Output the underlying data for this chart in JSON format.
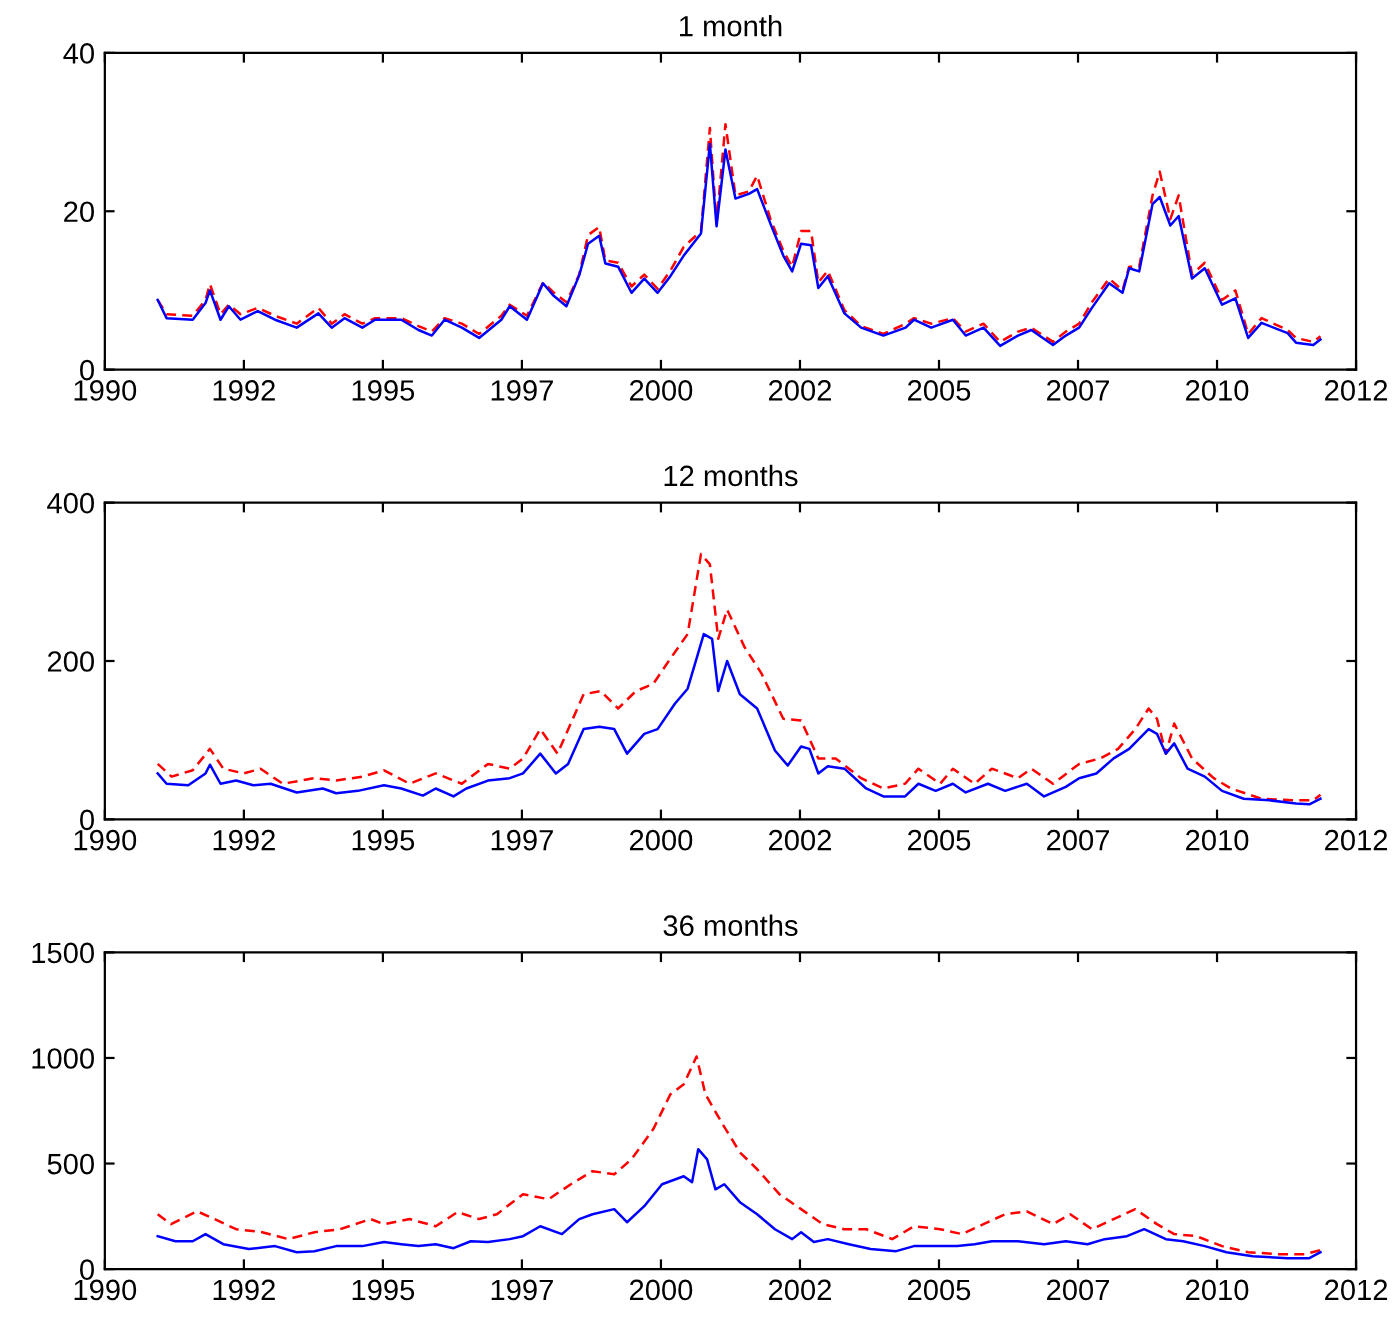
{
  "chart_data": [
    {
      "type": "line",
      "title": "1 month",
      "xlim": [
        1990,
        2012.5
      ],
      "ylim": [
        0,
        40
      ],
      "yticks": [
        0,
        20,
        40
      ],
      "grid": false,
      "xticks": [
        {
          "value": 1990,
          "label": "1990"
        },
        {
          "value": 1992.5,
          "label": "1992"
        },
        {
          "value": 1995,
          "label": "1995"
        },
        {
          "value": 1997.5,
          "label": "1997"
        },
        {
          "value": 2000,
          "label": "2000"
        },
        {
          "value": 2002.5,
          "label": "2002"
        },
        {
          "value": 2005,
          "label": "2005"
        },
        {
          "value": 2007.5,
          "label": "2007"
        },
        {
          "value": 2010,
          "label": "2010"
        },
        {
          "value": 2012.5,
          "label": "2012"
        }
      ],
      "series": [
        {
          "color": "#ff0000",
          "line_style": "dashed",
          "x": [
            1990.95,
            1991.11,
            1991.58,
            1991.81,
            1991.89,
            1992.08,
            1992.23,
            1992.44,
            1992.75,
            1993.06,
            1993.45,
            1993.84,
            1994.08,
            1994.31,
            1994.63,
            1994.86,
            1995.33,
            1995.64,
            1995.88,
            1996.11,
            1996.42,
            1996.73,
            1997.13,
            1997.28,
            1997.59,
            1997.88,
            1998.06,
            1998.3,
            1998.53,
            1998.69,
            1998.89,
            1999.0,
            1999.23,
            1999.47,
            1999.7,
            1999.94,
            2000.17,
            2000.41,
            2000.72,
            2000.88,
            2001.0,
            2001.16,
            2001.34,
            2001.58,
            2001.73,
            2001.97,
            2002.2,
            2002.36,
            2002.52,
            2002.7,
            2002.83,
            2003.0,
            2003.3,
            2003.6,
            2004.0,
            2004.4,
            2004.55,
            2004.86,
            2005.25,
            2005.48,
            2005.8,
            2006.1,
            2006.42,
            2006.66,
            2007.05,
            2007.28,
            2007.52,
            2007.75,
            2008.06,
            2008.3,
            2008.42,
            2008.6,
            2008.84,
            2008.97,
            2009.16,
            2009.31,
            2009.55,
            2009.78,
            2010.09,
            2010.33,
            2010.56,
            2010.8,
            2011.27,
            2011.42,
            2011.73,
            2011.86
          ],
          "values": [
            8.8,
            7,
            6.8,
            8.8,
            10.8,
            7,
            8.2,
            7,
            7.8,
            6.8,
            5.8,
            7.8,
            5.8,
            7,
            5.8,
            6.5,
            6.5,
            5.5,
            4.8,
            6.5,
            5.8,
            4.5,
            6.8,
            8.2,
            6.8,
            11,
            9.8,
            8.5,
            12,
            17,
            18,
            13.8,
            13.5,
            10.5,
            12,
            10.2,
            12.5,
            15.5,
            17.5,
            30.5,
            18.5,
            31,
            22,
            22.5,
            24.5,
            19,
            15,
            13,
            17.5,
            17.5,
            11,
            12.5,
            7.5,
            5.5,
            4.5,
            5.8,
            6.5,
            5.8,
            6.5,
            4.8,
            5.8,
            3.5,
            4.8,
            5.3,
            3.5,
            4.8,
            5.8,
            8.5,
            11.5,
            10,
            13,
            13,
            22,
            25,
            19,
            22,
            12,
            13.5,
            8.8,
            10,
            4.5,
            6.5,
            5,
            4,
            3.5,
            4.2
          ]
        },
        {
          "color": "#0000ff",
          "line_style": "solid",
          "x": [
            1990.95,
            1991.11,
            1991.58,
            1991.81,
            1991.89,
            1992.08,
            1992.23,
            1992.44,
            1992.75,
            1993.06,
            1993.45,
            1993.84,
            1994.08,
            1994.31,
            1994.63,
            1994.86,
            1995.33,
            1995.64,
            1995.88,
            1996.11,
            1996.42,
            1996.73,
            1997.13,
            1997.28,
            1997.59,
            1997.88,
            1998.06,
            1998.3,
            1998.53,
            1998.69,
            1998.89,
            1999.0,
            1999.23,
            1999.47,
            1999.7,
            1999.94,
            2000.17,
            2000.41,
            2000.72,
            2000.88,
            2001.0,
            2001.16,
            2001.34,
            2001.58,
            2001.73,
            2001.97,
            2002.2,
            2002.36,
            2002.52,
            2002.7,
            2002.83,
            2003.0,
            2003.3,
            2003.6,
            2004.0,
            2004.4,
            2004.55,
            2004.86,
            2005.25,
            2005.48,
            2005.8,
            2006.1,
            2006.42,
            2006.66,
            2007.05,
            2007.28,
            2007.52,
            2007.75,
            2008.06,
            2008.3,
            2008.42,
            2008.6,
            2008.84,
            2008.97,
            2009.16,
            2009.31,
            2009.55,
            2009.78,
            2010.09,
            2010.33,
            2010.56,
            2010.8,
            2011.27,
            2011.42,
            2011.73,
            2011.86
          ],
          "values": [
            8.8,
            6.5,
            6.3,
            8.4,
            10,
            6.3,
            8,
            6.3,
            7.4,
            6.3,
            5.3,
            7.1,
            5.3,
            6.5,
            5.3,
            6.3,
            6.3,
            5,
            4.3,
            6.3,
            5.3,
            4,
            6.3,
            8,
            6.3,
            10.9,
            9.4,
            8,
            11.9,
            15.9,
            16.9,
            13.4,
            13,
            9.7,
            11.5,
            9.7,
            11.8,
            14.4,
            17.2,
            28.5,
            18.1,
            27.8,
            21.6,
            22.2,
            22.8,
            18.4,
            14.4,
            12.4,
            15.9,
            15.7,
            10.3,
            11.8,
            7.1,
            5.3,
            4.3,
            5.3,
            6.3,
            5.3,
            6.3,
            4.3,
            5.3,
            3,
            4.3,
            5,
            3.1,
            4.3,
            5.3,
            7.8,
            10.9,
            9.7,
            12.8,
            12.4,
            20.9,
            21.8,
            18.2,
            19.4,
            11.5,
            12.8,
            8.2,
            9,
            4,
            5.9,
            4.6,
            3.4,
            3.1,
            3.8
          ]
        }
      ]
    },
    {
      "type": "line",
      "title": "12 months",
      "xlim": [
        1990,
        2012.5
      ],
      "ylim": [
        0,
        400
      ],
      "yticks": [
        0,
        200,
        400
      ],
      "grid": false,
      "xticks": [
        {
          "value": 1990,
          "label": "1990"
        },
        {
          "value": 1992.5,
          "label": "1992"
        },
        {
          "value": 1995,
          "label": "1995"
        },
        {
          "value": 1997.5,
          "label": "1997"
        },
        {
          "value": 2000,
          "label": "2000"
        },
        {
          "value": 2002.5,
          "label": "2002"
        },
        {
          "value": 2005,
          "label": "2005"
        },
        {
          "value": 2007.5,
          "label": "2007"
        },
        {
          "value": 2010,
          "label": "2010"
        },
        {
          "value": 2012.5,
          "label": "2012"
        }
      ],
      "series": [
        {
          "color": "#ff0000",
          "line_style": "dashed",
          "x": [
            1990.95,
            1991.2,
            1991.58,
            1991.89,
            1992.13,
            1992.5,
            1992.8,
            1993.2,
            1993.77,
            1994.16,
            1994.63,
            1995.02,
            1995.48,
            1995.95,
            1996.42,
            1996.89,
            1997.28,
            1997.52,
            1997.83,
            1998.14,
            1998.61,
            1998.92,
            1999.23,
            1999.55,
            1999.86,
            2000.17,
            2000.48,
            2000.72,
            2000.88,
            2001.03,
            2001.19,
            2001.5,
            2001.81,
            2002.2,
            2002.52,
            2002.83,
            2003.14,
            2003.6,
            2004.0,
            2004.39,
            2004.63,
            2005.02,
            2005.25,
            2005.64,
            2005.95,
            2006.42,
            2006.66,
            2007.05,
            2007.52,
            2007.9,
            2008.22,
            2008.53,
            2008.77,
            2008.92,
            2009.08,
            2009.23,
            2009.55,
            2009.94,
            2010.25,
            2010.8,
            2011.42,
            2011.73,
            2011.86
          ],
          "values": [
            70,
            54,
            62,
            89,
            64,
            58,
            64,
            45,
            52,
            49,
            54,
            62,
            45,
            58,
            45,
            70,
            64,
            77,
            114,
            83,
            158,
            162,
            140,
            162,
            171,
            203,
            234,
            335,
            322,
            228,
            265,
            218,
            184,
            127,
            125,
            77,
            77,
            52,
            39,
            45,
            64,
            45,
            64,
            45,
            64,
            52,
            64,
            45,
            70,
            77,
            89,
            114,
            140,
            127,
            83,
            121,
            77,
            52,
            39,
            26,
            24,
            24,
            31
          ]
        },
        {
          "color": "#0000ff",
          "line_style": "solid",
          "x": [
            1990.95,
            1991.11,
            1991.5,
            1991.81,
            1991.89,
            1992.08,
            1992.36,
            1992.67,
            1992.98,
            1993.45,
            1993.92,
            1994.16,
            1994.55,
            1995.02,
            1995.33,
            1995.72,
            1995.95,
            1996.27,
            1996.5,
            1996.89,
            1997.28,
            1997.52,
            1997.83,
            1998.11,
            1998.33,
            1998.61,
            1998.89,
            1999.16,
            1999.39,
            1999.7,
            1999.94,
            2000.25,
            2000.48,
            2000.64,
            2000.77,
            2000.92,
            2001.03,
            2001.19,
            2001.42,
            2001.73,
            2002.05,
            2002.28,
            2002.52,
            2002.67,
            2002.83,
            2003.0,
            2003.3,
            2003.69,
            2004.0,
            2004.39,
            2004.63,
            2004.94,
            2005.25,
            2005.48,
            2005.88,
            2006.19,
            2006.58,
            2006.89,
            2007.28,
            2007.52,
            2007.83,
            2008.14,
            2008.42,
            2008.77,
            2008.92,
            2009.08,
            2009.23,
            2009.47,
            2009.78,
            2010.09,
            2010.48,
            2010.95,
            2011.42,
            2011.66,
            2011.86
          ],
          "values": [
            58,
            45,
            43,
            58,
            69,
            45,
            49,
            43,
            45,
            34,
            39,
            33,
            36,
            43,
            39,
            30,
            39,
            29,
            39,
            49,
            52,
            58,
            83,
            58,
            70,
            114,
            117,
            114,
            83,
            108,
            114,
            146,
            165,
            203,
            234,
            228,
            162,
            200,
            158,
            140,
            87,
            68,
            92,
            89,
            58,
            67,
            64,
            39,
            29,
            29,
            45,
            36,
            45,
            34,
            45,
            36,
            45,
            29,
            41,
            52,
            58,
            77,
            89,
            114,
            108,
            83,
            96,
            64,
            54,
            36,
            26,
            24,
            20,
            19,
            26
          ]
        }
      ]
    },
    {
      "type": "line",
      "title": "36 months",
      "xlim": [
        1990,
        2012.5
      ],
      "ylim": [
        0,
        1500
      ],
      "yticks": [
        0,
        500,
        1000,
        1500
      ],
      "grid": false,
      "xticks": [
        {
          "value": 1990,
          "label": "1990"
        },
        {
          "value": 1992.5,
          "label": "1992"
        },
        {
          "value": 1995,
          "label": "1995"
        },
        {
          "value": 1997.5,
          "label": "1997"
        },
        {
          "value": 2000,
          "label": "2000"
        },
        {
          "value": 2002.5,
          "label": "2002"
        },
        {
          "value": 2005,
          "label": "2005"
        },
        {
          "value": 2007.5,
          "label": "2007"
        },
        {
          "value": 2010,
          "label": "2010"
        },
        {
          "value": 2012.5,
          "label": "2012"
        }
      ],
      "series": [
        {
          "color": "#ff0000",
          "line_style": "dashed",
          "x": [
            1990.95,
            1991.19,
            1991.66,
            1991.97,
            1992.36,
            1992.83,
            1993.3,
            1993.77,
            1994.23,
            1994.78,
            1995.02,
            1995.48,
            1995.95,
            1996.34,
            1996.73,
            1997.05,
            1997.52,
            1997.98,
            1998.38,
            1998.77,
            1999.16,
            1999.47,
            1999.86,
            2000.17,
            2000.41,
            2000.64,
            2000.8,
            2001.11,
            2001.42,
            2001.73,
            2002.13,
            2002.52,
            2002.91,
            2003.3,
            2003.69,
            2004.16,
            2004.55,
            2005.02,
            2005.41,
            2005.8,
            2006.19,
            2006.58,
            2007.05,
            2007.36,
            2007.75,
            2008.14,
            2008.53,
            2008.92,
            2009.23,
            2009.63,
            2010.09,
            2010.56,
            2011.11,
            2011.58,
            2011.86
          ],
          "values": [
            260,
            213,
            274,
            237,
            189,
            175,
            142,
            175,
            189,
            237,
            213,
            237,
            203,
            270,
            237,
            260,
            355,
            331,
            402,
            464,
            449,
            520,
            662,
            828,
            875,
            1007,
            828,
            686,
            553,
            473,
            355,
            284,
            213,
            189,
            189,
            142,
            203,
            189,
            166,
            213,
            260,
            274,
            213,
            260,
            189,
            237,
            284,
            213,
            166,
            156,
            109,
            80,
            71,
            71,
            90
          ]
        },
        {
          "color": "#0000ff",
          "line_style": "solid",
          "x": [
            1990.95,
            1991.27,
            1991.58,
            1991.81,
            1992.13,
            1992.59,
            1993.06,
            1993.45,
            1993.77,
            1994.16,
            1994.63,
            1995.02,
            1995.33,
            1995.64,
            1995.95,
            1996.27,
            1996.58,
            1996.89,
            1997.28,
            1997.52,
            1997.83,
            1998.22,
            1998.53,
            1998.77,
            1999.16,
            1999.39,
            1999.7,
            2000.02,
            2000.41,
            2000.56,
            2000.67,
            2000.83,
            2000.98,
            2001.14,
            2001.42,
            2001.73,
            2002.05,
            2002.36,
            2002.52,
            2002.75,
            2003.0,
            2003.38,
            2003.77,
            2004.23,
            2004.55,
            2004.86,
            2005.33,
            2005.64,
            2005.95,
            2006.42,
            2006.89,
            2007.28,
            2007.67,
            2007.98,
            2008.38,
            2008.69,
            2009.08,
            2009.39,
            2009.78,
            2010.17,
            2010.64,
            2011.27,
            2011.66,
            2011.86
          ],
          "values": [
            156,
            132,
            132,
            166,
            118,
            95,
            109,
            80,
            85,
            109,
            109,
            128,
            118,
            109,
            118,
            99,
            132,
            128,
            142,
            156,
            203,
            166,
            237,
            260,
            284,
            222,
            298,
            402,
            440,
            412,
            568,
            520,
            378,
            402,
            317,
            260,
            189,
            142,
            175,
            128,
            142,
            118,
            95,
            85,
            109,
            109,
            109,
            118,
            132,
            132,
            118,
            132,
            118,
            142,
            156,
            189,
            142,
            132,
            109,
            80,
            61,
            52,
            52,
            80
          ]
        }
      ]
    }
  ]
}
